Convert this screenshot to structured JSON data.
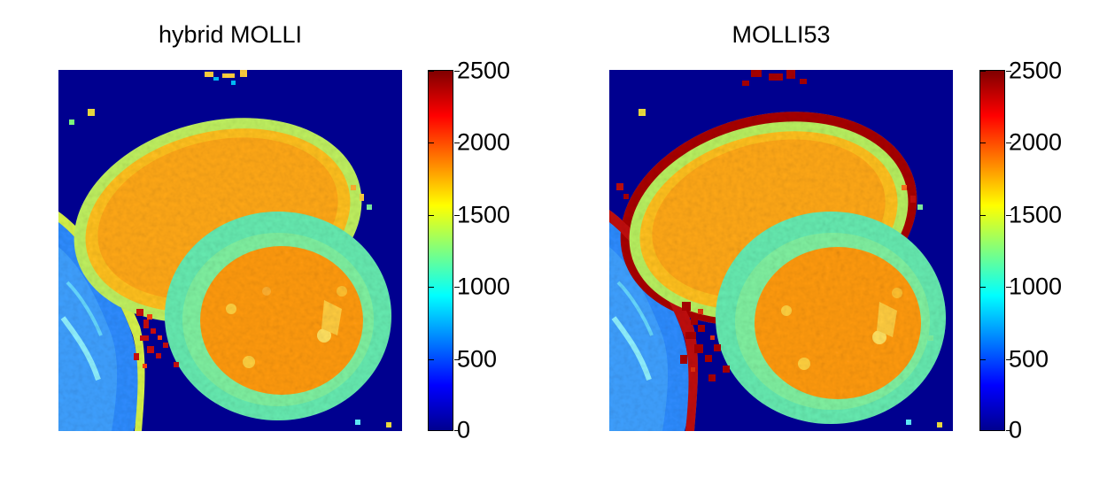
{
  "panels": [
    {
      "title": "hybrid MOLLI",
      "colorbar": {
        "min": 0,
        "max": 2500,
        "ticks": [
          "2500",
          "2000",
          "1500",
          "1000",
          "500",
          "0"
        ]
      },
      "colormap": "jet",
      "colors": {
        "background": "#00008f",
        "blood": "#ff9a10",
        "myocardium": "#66f0b0",
        "tissue": "#2288ff",
        "noise": "#c81010"
      }
    },
    {
      "title": "MOLLI53",
      "colorbar": {
        "min": 0,
        "max": 2500,
        "ticks": [
          "2500",
          "2000",
          "1500",
          "1000",
          "500",
          "0"
        ]
      },
      "colormap": "jet",
      "colors": {
        "background": "#00008f",
        "blood": "#ff9a10",
        "myocardium": "#66f0b0",
        "tissue": "#2288ff",
        "noise": "#a80000"
      }
    }
  ]
}
